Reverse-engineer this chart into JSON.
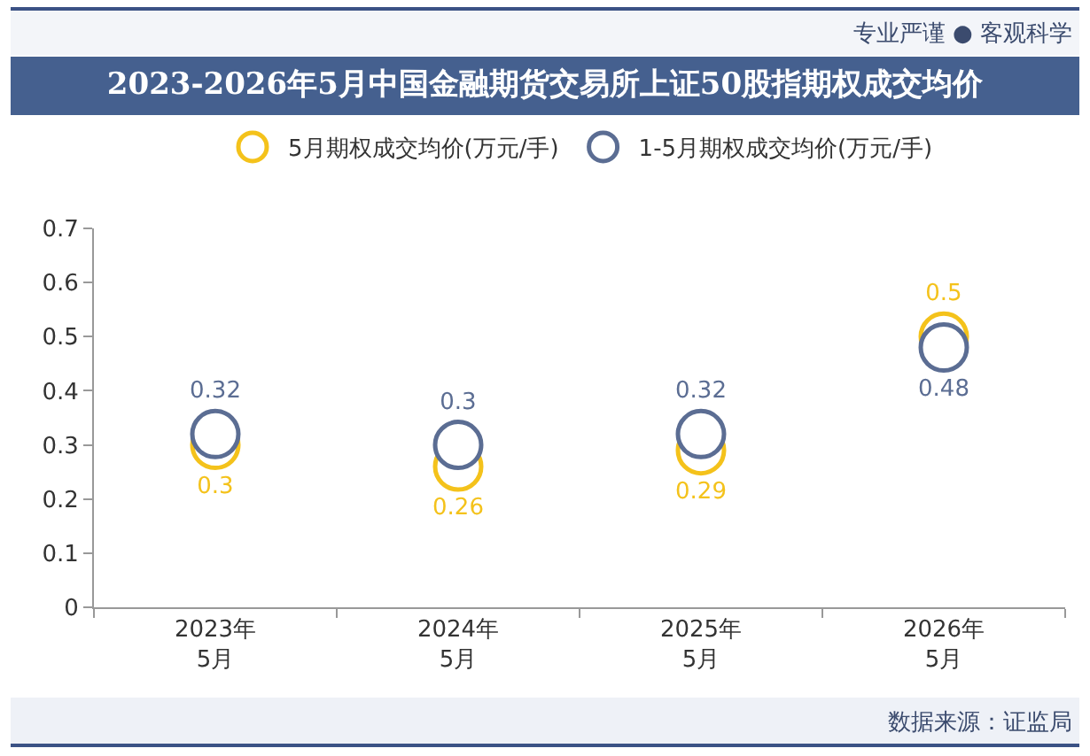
{
  "chart_data": {
    "type": "scatter",
    "title": "2023-2026年5月中国金融期货交易所上证50股指期权成交均价",
    "categories": [
      "2023年\n5月",
      "2024年\n5月",
      "2025年\n5月",
      "2026年\n5月"
    ],
    "series": [
      {
        "name": "5月期权成交均价(万元/手)",
        "color": "#f4c21b",
        "values": [
          0.3,
          0.26,
          0.29,
          0.5
        ]
      },
      {
        "name": "1-5月期权成交均价(万元/手)",
        "color": "#5b6d93",
        "values": [
          0.32,
          0.3,
          0.32,
          0.48
        ]
      }
    ],
    "ylim": [
      0,
      0.7
    ],
    "yticks": [
      0,
      0.1,
      0.2,
      0.3,
      0.4,
      0.5,
      0.6,
      0.7
    ],
    "grid": false,
    "legend": "top",
    "marker": "circle",
    "data_labels": true,
    "annotations": [
      "专业严谨 ● 客观科学",
      "数据来源：证监局"
    ]
  }
}
